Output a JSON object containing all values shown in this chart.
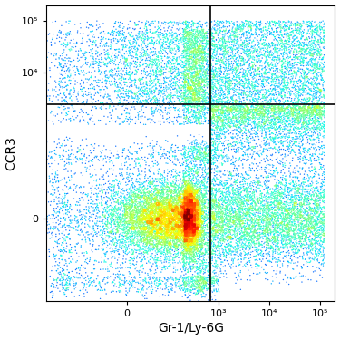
{
  "title": "",
  "xlabel": "Gr-1/Ly-6G",
  "ylabel": "CCR3",
  "background_color": "#ffffff",
  "colormap": "jet",
  "seed": 42,
  "quadrant_x": 700,
  "quadrant_y": 2500,
  "x_linthresh": 200,
  "y_linthresh": 200,
  "xlim_low": -600,
  "xlim_high": 200000,
  "ylim_low": -600,
  "ylim_high": 200000,
  "xticks": [
    0,
    1000,
    10000,
    100000
  ],
  "xticklabels": [
    "0",
    "10³",
    "10⁴",
    "10⁵"
  ],
  "yticks": [
    0,
    10000,
    100000
  ],
  "yticklabels": [
    "0",
    "10⁴",
    "10⁵"
  ],
  "figsize": [
    3.75,
    3.75
  ],
  "dpi": 100,
  "point_size": 1.0,
  "density_gamma": 0.35
}
